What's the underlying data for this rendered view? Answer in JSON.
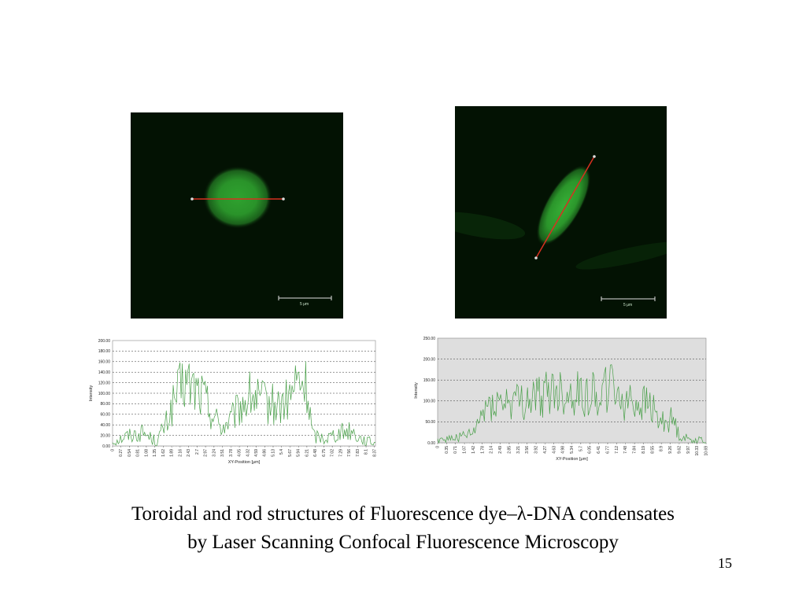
{
  "images": {
    "left": {
      "scale_label": "5 μm"
    },
    "right": {
      "scale_label": "5 μm"
    }
  },
  "charts": [
    {
      "type": "line",
      "ylabel": "Intensity",
      "xlabel": "XY-Position [μm]",
      "ylim": [
        0,
        200
      ],
      "yticks": [
        "0.00",
        "20.00",
        "40.00",
        "60.00",
        "80.00",
        "100.00",
        "120.00",
        "140.00",
        "160.00",
        "180.00",
        "200.00"
      ],
      "xticks": [
        "0",
        "0.27",
        "0.54",
        "0.81",
        "1.08",
        "1.35",
        "1.62",
        "1.89",
        "2.16",
        "2.43",
        "2.7",
        "2.97",
        "3.24",
        "3.51",
        "3.78",
        "4.05",
        "4.32",
        "4.59",
        "4.86",
        "5.13",
        "5.4",
        "5.67",
        "5.94",
        "6.21",
        "6.48",
        "6.75",
        "7.02",
        "7.29",
        "7.56",
        "7.83",
        "8.1",
        "8.37"
      ],
      "xmax": 8.4,
      "grid": true,
      "plot_bg": "#ffffff",
      "line_color": "#4aa04a",
      "profile": [
        [
          0,
          8
        ],
        [
          0.5,
          20
        ],
        [
          1.0,
          25
        ],
        [
          1.4,
          8
        ],
        [
          1.7,
          40
        ],
        [
          2.0,
          90
        ],
        [
          2.3,
          120
        ],
        [
          2.6,
          110
        ],
        [
          2.9,
          95
        ],
        [
          3.2,
          60
        ],
        [
          3.5,
          35
        ],
        [
          3.8,
          50
        ],
        [
          4.1,
          75
        ],
        [
          4.4,
          95
        ],
        [
          4.7,
          85
        ],
        [
          5.0,
          80
        ],
        [
          5.3,
          75
        ],
        [
          5.6,
          85
        ],
        [
          5.9,
          120
        ],
        [
          6.2,
          110
        ],
        [
          6.4,
          20
        ],
        [
          6.8,
          15
        ],
        [
          7.2,
          25
        ],
        [
          7.6,
          30
        ],
        [
          7.9,
          15
        ],
        [
          8.2,
          8
        ],
        [
          8.4,
          5
        ]
      ]
    },
    {
      "type": "line",
      "ylabel": "Intensity",
      "xlabel": "XY-Position [μm]",
      "ylim": [
        0,
        250
      ],
      "yticks": [
        "0.00",
        "50.00",
        "100.00",
        "150.00",
        "200.00",
        "250.00"
      ],
      "xticks": [
        "0",
        "0.35",
        "0.71",
        "1.07",
        "1.42",
        "1.78",
        "2.14",
        "2.49",
        "2.85",
        "3.21",
        "3.56",
        "3.92",
        "4.27",
        "4.63",
        "4.98",
        "5.34",
        "5.7",
        "6.05",
        "6.41",
        "6.77",
        "7.12",
        "7.48",
        "7.84",
        "8.19",
        "8.55",
        "8.9",
        "9.26",
        "9.62",
        "9.97",
        "10.33",
        "10.69"
      ],
      "xmax": 10.69,
      "grid": true,
      "plot_bg": "#dedede",
      "line_color": "#4aa04a",
      "profile": [
        [
          0,
          8
        ],
        [
          0.5,
          10
        ],
        [
          1.0,
          15
        ],
        [
          1.4,
          20
        ],
        [
          1.8,
          70
        ],
        [
          2.1,
          100
        ],
        [
          2.5,
          95
        ],
        [
          2.9,
          100
        ],
        [
          3.3,
          95
        ],
        [
          3.7,
          105
        ],
        [
          4.1,
          110
        ],
        [
          4.5,
          125
        ],
        [
          4.9,
          120
        ],
        [
          5.3,
          115
        ],
        [
          5.7,
          120
        ],
        [
          6.1,
          115
        ],
        [
          6.5,
          125
        ],
        [
          6.9,
          135
        ],
        [
          7.3,
          110
        ],
        [
          7.7,
          100
        ],
        [
          8.1,
          95
        ],
        [
          8.5,
          90
        ],
        [
          8.8,
          50
        ],
        [
          9.1,
          55
        ],
        [
          9.4,
          55
        ],
        [
          9.6,
          20
        ],
        [
          10.0,
          8
        ],
        [
          10.69,
          5
        ]
      ]
    }
  ],
  "caption": {
    "line1": "Toroidal and rod structures of Fluorescence dye–λ-DNA condensates",
    "line2": "by Laser Scanning Confocal Fluorescence Microscopy"
  },
  "page_number": "15"
}
